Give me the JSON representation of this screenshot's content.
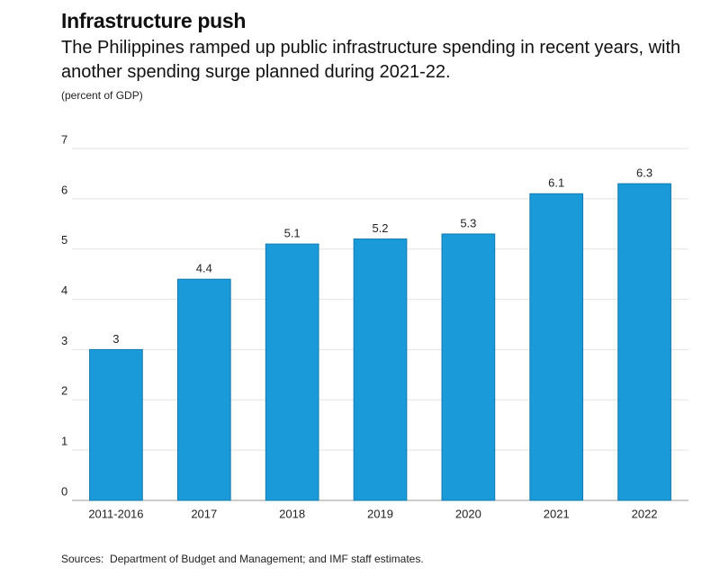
{
  "chart_data": {
    "type": "bar",
    "title": "Infrastructure push",
    "subtitle": "The Philippines ramped up public infrastructure spending in recent years, with another spending surge planned during 2021-22.",
    "y_label": "(percent of GDP)",
    "source": "Sources:  Department of Budget and Management; and IMF staff estimates.",
    "categories": [
      "2011-2016",
      "2017",
      "2018",
      "2019",
      "2020",
      "2021",
      "2022"
    ],
    "values": [
      3,
      4.4,
      5.1,
      5.2,
      5.3,
      6.1,
      6.3
    ],
    "color": "#1a9ad8",
    "ylim": [
      0,
      7
    ],
    "yticks": [
      0,
      1,
      2,
      3,
      4,
      5,
      6,
      7
    ],
    "grid": true
  }
}
